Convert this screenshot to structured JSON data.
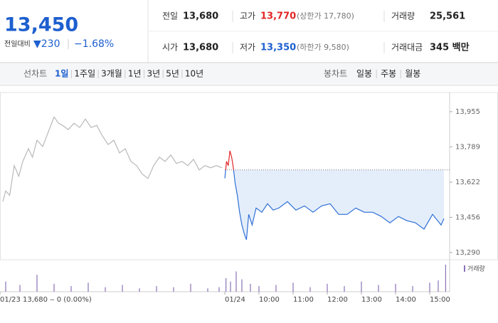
{
  "summary": {
    "price": "13,450",
    "change_label": "전일대비",
    "change": "▼230",
    "change_rate": "−1.68%",
    "cells": [
      {
        "label": "전일",
        "value": "13,680"
      },
      {
        "label": "고가",
        "value": "13,770",
        "note": "(상한가 17,780)"
      },
      {
        "label": "거래량",
        "value": "25,561"
      },
      {
        "label": "시가",
        "value": "13,680"
      },
      {
        "label": "저가",
        "value": "13,350",
        "note": "(하한가 9,580)"
      },
      {
        "label": "거래대금",
        "value": "345 백만"
      }
    ]
  },
  "tabs": {
    "line_label": "선차트",
    "line": [
      "1일",
      "1주일",
      "3개월",
      "1년",
      "3년",
      "5년",
      "10년"
    ],
    "candle_label": "봉차트",
    "candle": [
      "일봉",
      "주봉",
      "월봉"
    ]
  },
  "chart_data": {
    "type": "line",
    "reference_line": 13680,
    "xlim": [
      -395,
      395
    ],
    "ylim": [
      13256,
      14079
    ],
    "yticks": [
      {
        "value": 13290,
        "label": "13,290"
      },
      {
        "value": 13456,
        "label": "13,456"
      },
      {
        "value": 13622,
        "label": "13,622"
      },
      {
        "value": 13789,
        "label": "13,789"
      },
      {
        "value": 13955,
        "label": "13,955"
      }
    ],
    "xticks": [
      {
        "value": -395,
        "label": "01/23  13,680 ‒ 0 (0.00%)"
      },
      {
        "value": 0,
        "label": "01/24"
      },
      {
        "value": 60,
        "label": "10:00"
      },
      {
        "value": 120,
        "label": "11:00"
      },
      {
        "value": 180,
        "label": "12:00"
      },
      {
        "value": 240,
        "label": "13:00"
      },
      {
        "value": 300,
        "label": "14:00"
      },
      {
        "value": 360,
        "label": "15:00"
      }
    ],
    "series": [
      {
        "color": "#b8b8b8",
        "x": [
          -390,
          -385,
          -378,
          -370,
          -362,
          -355,
          -345,
          -338,
          -330,
          -320,
          -310,
          -300,
          -292,
          -285,
          -275,
          -265,
          -255,
          -245,
          -235,
          -225,
          -215,
          -205,
          -195,
          -185,
          -175,
          -165,
          -155,
          -145,
          -135,
          -125,
          -115,
          -105,
          -95,
          -85,
          -75,
          -65,
          -55,
          -45,
          -35,
          -25,
          -15,
          -5
        ],
        "values": [
          13530,
          13580,
          13560,
          13700,
          13650,
          13720,
          13780,
          13740,
          13820,
          13790,
          13860,
          13930,
          13900,
          13890,
          13870,
          13900,
          13880,
          13920,
          13880,
          13890,
          13840,
          13800,
          13820,
          13760,
          13780,
          13720,
          13700,
          13660,
          13640,
          13700,
          13740,
          13720,
          13750,
          13710,
          13720,
          13700,
          13730,
          13680,
          13700,
          13690,
          13700,
          13690
        ]
      },
      {
        "color": "#2f6fd6",
        "up_color": "#e22626",
        "x": [
          0,
          3,
          6,
          9,
          12,
          15,
          18,
          22,
          26,
          30,
          34,
          38,
          42,
          48,
          55,
          65,
          75,
          85,
          95,
          110,
          125,
          140,
          155,
          170,
          185,
          200,
          215,
          230,
          245,
          260,
          275,
          290,
          305,
          320,
          335,
          350,
          365,
          380,
          385
        ],
        "values": [
          13640,
          13720,
          13700,
          13770,
          13740,
          13690,
          13620,
          13560,
          13480,
          13420,
          13380,
          13350,
          13470,
          13420,
          13500,
          13480,
          13520,
          13490,
          13500,
          13530,
          13490,
          13510,
          13480,
          13510,
          13520,
          13470,
          13470,
          13500,
          13480,
          13480,
          13460,
          13430,
          13460,
          13440,
          13430,
          13400,
          13470,
          13420,
          13450
        ]
      }
    ],
    "volume": {
      "name": "거래량",
      "color": "#8a72b8",
      "x": [
        -385,
        -360,
        -330,
        -300,
        -270,
        -240,
        -210,
        -180,
        -150,
        -120,
        -90,
        -60,
        -30,
        -10,
        2,
        10,
        20,
        30,
        45,
        60,
        90,
        120,
        150,
        180,
        210,
        240,
        270,
        300,
        330,
        360,
        375,
        388
      ],
      "values": [
        900,
        600,
        1500,
        700,
        500,
        800,
        400,
        600,
        300,
        500,
        400,
        700,
        300,
        400,
        1200,
        900,
        1800,
        1100,
        700,
        500,
        600,
        800,
        400,
        700,
        500,
        900,
        600,
        700,
        500,
        800,
        1000,
        2400
      ]
    }
  }
}
